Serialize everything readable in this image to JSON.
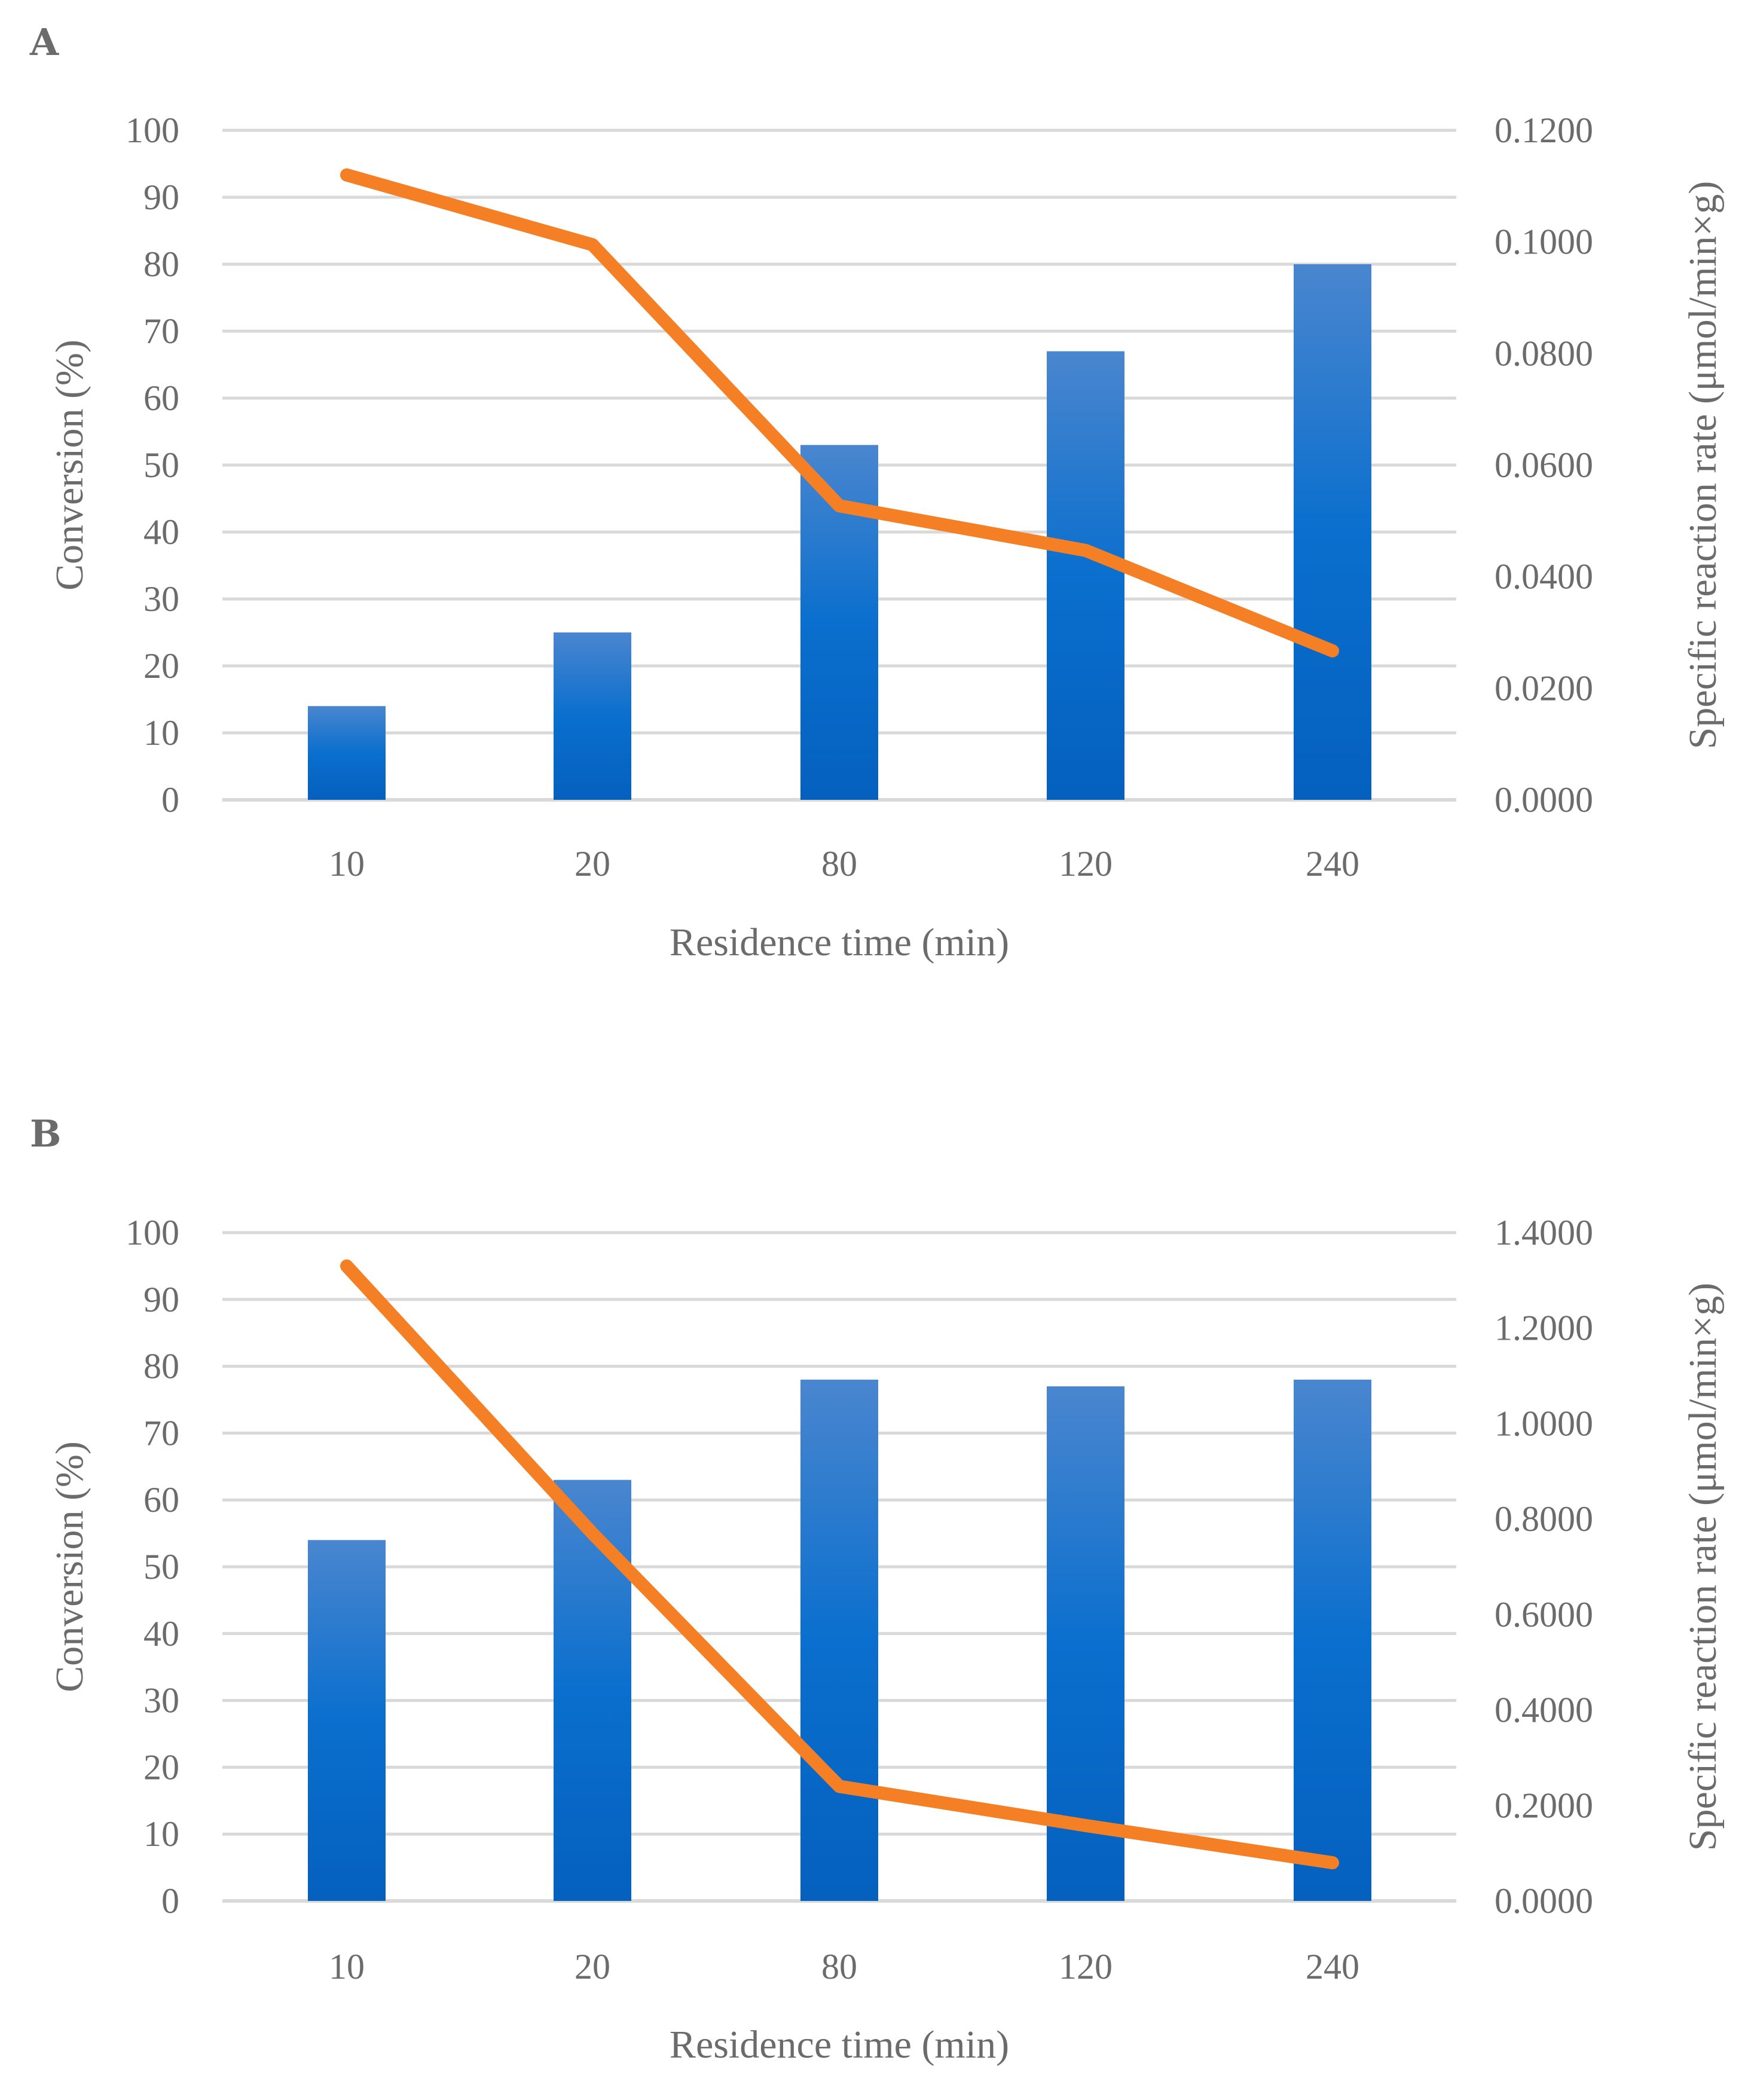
{
  "chart_data": [
    {
      "type": "bar+line",
      "panel": "A",
      "categories": [
        "10",
        "20",
        "80",
        "120",
        "240"
      ],
      "series": [
        {
          "name": "Conversion (%)",
          "type": "bar",
          "axis": "left",
          "values": [
            14,
            25,
            53,
            67,
            80
          ]
        },
        {
          "name": "Specific reaction rate",
          "type": "line",
          "axis": "right",
          "values": [
            0.112,
            0.0995,
            0.0527,
            0.0447,
            0.0267
          ]
        }
      ],
      "xlabel": "Residence time (min)",
      "ylabel": "Conversion (%)",
      "y2label": "Specific reaction rate (μmol/min×g)",
      "ylim": [
        0,
        100
      ],
      "y2lim": [
        0,
        0.12
      ],
      "yticks": [
        "0",
        "10",
        "20",
        "30",
        "40",
        "50",
        "60",
        "70",
        "80",
        "90",
        "100"
      ],
      "y2ticks": [
        "0.0000",
        "0.0200",
        "0.0400",
        "0.0600",
        "0.0800",
        "0.1000",
        "0.1200"
      ],
      "grid": true,
      "colors": {
        "bar_top": "#4a86cf",
        "bar_mid": "#0a6fce",
        "bar_bottom": "#0560be",
        "line": "#f57f25"
      }
    },
    {
      "type": "bar+line",
      "panel": "B",
      "categories": [
        "10",
        "20",
        "80",
        "120",
        "240"
      ],
      "series": [
        {
          "name": "Conversion (%)",
          "type": "bar",
          "axis": "left",
          "values": [
            54,
            63,
            78,
            77,
            78
          ]
        },
        {
          "name": "Specific reaction rate",
          "type": "line",
          "axis": "right",
          "values": [
            1.33,
            0.77,
            0.24,
            0.158,
            0.08
          ]
        }
      ],
      "xlabel": "Residence time (min)",
      "ylabel": "Conversion (%)",
      "y2label": "Specific reaction rate (μmol/min×g)",
      "ylim": [
        0,
        100
      ],
      "y2lim": [
        0,
        1.4
      ],
      "yticks": [
        "0",
        "10",
        "20",
        "30",
        "40",
        "50",
        "60",
        "70",
        "80",
        "90",
        "100"
      ],
      "y2ticks": [
        "0.0000",
        "0.2000",
        "0.4000",
        "0.6000",
        "0.8000",
        "1.0000",
        "1.2000",
        "1.4000"
      ],
      "grid": true,
      "colors": {
        "bar_top": "#4a86cf",
        "bar_mid": "#0a6fce",
        "bar_bottom": "#0560be",
        "line": "#f57f25"
      }
    }
  ]
}
